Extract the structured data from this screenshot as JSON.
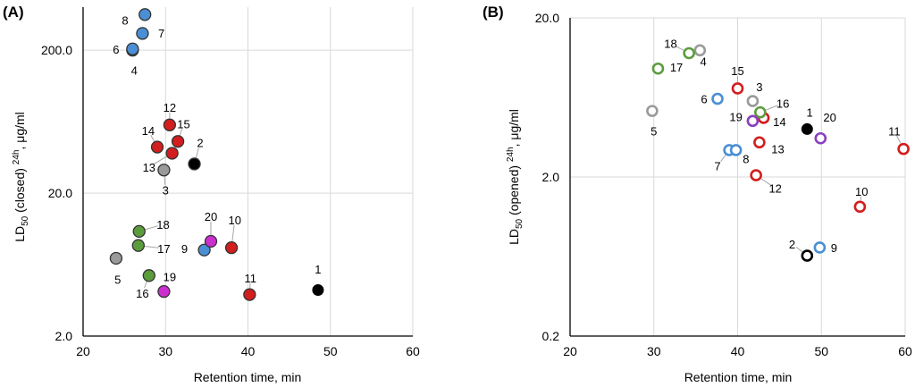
{
  "chart_data": [
    {
      "type": "scatter",
      "panel_label": "(A)",
      "xlabel": "Retention time, min",
      "ylabel_parts": [
        "LD",
        "50",
        " (closed) ",
        "24h",
        ", μg/ml"
      ],
      "xlim": [
        20,
        60
      ],
      "xticks": [
        "20",
        "30",
        "40",
        "50",
        "60"
      ],
      "yscale": "log",
      "ylim": [
        2,
        400
      ],
      "yticks": [
        {
          "v": 2,
          "label": "2.0"
        },
        {
          "v": 20,
          "label": "20.0"
        },
        {
          "v": 200,
          "label": "200.0"
        }
      ],
      "colors": {
        "blue": "#4a8fd4",
        "red": "#d21e1e",
        "green": "#5b9c3c",
        "gray": "#9a9a9a",
        "magenta": "#cc2ed0",
        "black": "#000000"
      },
      "points": [
        {
          "id": "1",
          "x": 48.5,
          "y": 4.2,
          "color": "black",
          "lx": 48.5,
          "ly": 5.9,
          "leader": false
        },
        {
          "id": "2",
          "x": 33.5,
          "y": 32.0,
          "color": "black",
          "lx": 34.2,
          "ly": 45.0,
          "leader": true
        },
        {
          "id": "3",
          "x": 29.8,
          "y": 29.0,
          "color": "gray",
          "lx": 30.0,
          "ly": 21.0,
          "leader": true
        },
        {
          "id": "4",
          "x": 26.0,
          "y": 200.0,
          "color": "blue",
          "lx": 26.2,
          "ly": 145.0,
          "leader": false
        },
        {
          "id": "5",
          "x": 24.0,
          "y": 7.0,
          "color": "gray",
          "lx": 24.2,
          "ly": 5.0,
          "leader": false
        },
        {
          "id": "6",
          "x": 26.0,
          "y": 204.0,
          "color": "blue",
          "lx": 24.0,
          "ly": 204.0,
          "leader": false
        },
        {
          "id": "7",
          "x": 27.2,
          "y": 262.0,
          "color": "blue",
          "lx": 29.5,
          "ly": 264.0,
          "leader": false
        },
        {
          "id": "8",
          "x": 27.5,
          "y": 355.0,
          "color": "blue",
          "lx": 25.1,
          "ly": 325.0,
          "leader": false
        },
        {
          "id": "9",
          "x": 34.7,
          "y": 8.0,
          "color": "blue",
          "lx": 32.3,
          "ly": 8.2,
          "leader": false
        },
        {
          "id": "10",
          "x": 38.0,
          "y": 8.3,
          "color": "red",
          "lx": 38.4,
          "ly": 13.0,
          "leader": true
        },
        {
          "id": "11",
          "x": 40.2,
          "y": 3.9,
          "color": "red",
          "lx": 40.3,
          "ly": 5.1,
          "leader": true
        },
        {
          "id": "12",
          "x": 30.5,
          "y": 60.0,
          "color": "red",
          "lx": 30.5,
          "ly": 80.0,
          "leader": true
        },
        {
          "id": "13",
          "x": 30.8,
          "y": 38.0,
          "color": "red",
          "lx": 28.0,
          "ly": 30.5,
          "leader": true
        },
        {
          "id": "14",
          "x": 29.0,
          "y": 42.0,
          "color": "red",
          "lx": 27.9,
          "ly": 55.0,
          "leader": true
        },
        {
          "id": "15",
          "x": 31.5,
          "y": 46.0,
          "color": "red",
          "lx": 32.2,
          "ly": 61.0,
          "leader": true
        },
        {
          "id": "16",
          "x": 28.0,
          "y": 5.3,
          "color": "green",
          "lx": 27.2,
          "ly": 4.0,
          "leader": true
        },
        {
          "id": "17",
          "x": 26.7,
          "y": 8.6,
          "color": "green",
          "lx": 29.8,
          "ly": 8.2,
          "leader": true
        },
        {
          "id": "18",
          "x": 26.8,
          "y": 10.8,
          "color": "green",
          "lx": 29.7,
          "ly": 12.1,
          "leader": true
        },
        {
          "id": "19",
          "x": 29.8,
          "y": 4.1,
          "color": "magenta",
          "lx": 30.5,
          "ly": 5.2,
          "leader": false
        },
        {
          "id": "20",
          "x": 35.5,
          "y": 9.2,
          "color": "magenta",
          "lx": 35.5,
          "ly": 13.8,
          "leader": true
        }
      ]
    },
    {
      "type": "scatter",
      "panel_label": "(B)",
      "xlabel": "Retention time, min",
      "ylabel_parts": [
        "LD",
        "50",
        " (opened) ",
        "24h",
        ", μg/ml"
      ],
      "xlim": [
        20,
        60
      ],
      "xticks": [
        "20",
        "30",
        "40",
        "50",
        "60"
      ],
      "yscale": "log",
      "ylim": [
        0.2,
        20
      ],
      "yticks": [
        {
          "v": 0.2,
          "label": "0.2"
        },
        {
          "v": 2,
          "label": "2.0"
        },
        {
          "v": 20,
          "label": "20.0"
        }
      ],
      "colors": {
        "blue": "#4a8fd4",
        "red": "#d21e1e",
        "green": "#5b9c3c",
        "gray": "#9a9a9a",
        "magenta": "#8a3fbf",
        "black": "#000000"
      },
      "points": [
        {
          "id": "1",
          "x": 48.3,
          "y": 4.0,
          "color": "black",
          "lx": 48.6,
          "ly": 5.1,
          "leader": false
        },
        {
          "id": "2",
          "x": 48.3,
          "y": 0.64,
          "color": "black",
          "lx": 46.5,
          "ly": 0.76,
          "leader": true
        },
        {
          "id": "3",
          "x": 41.8,
          "y": 6.0,
          "color": "gray",
          "lx": 42.6,
          "ly": 7.4,
          "leader": false
        },
        {
          "id": "4",
          "x": 35.5,
          "y": 12.5,
          "color": "gray",
          "lx": 35.9,
          "ly": 10.7,
          "leader": false
        },
        {
          "id": "5",
          "x": 29.8,
          "y": 5.2,
          "color": "gray",
          "lx": 30.0,
          "ly": 3.9,
          "leader": false
        },
        {
          "id": "6",
          "x": 37.6,
          "y": 6.2,
          "color": "blue",
          "lx": 36.0,
          "ly": 6.2,
          "leader": false
        },
        {
          "id": "7",
          "x": 39.0,
          "y": 2.95,
          "color": "blue",
          "lx": 37.6,
          "ly": 2.35,
          "leader": true
        },
        {
          "id": "8",
          "x": 39.8,
          "y": 2.95,
          "color": "blue",
          "lx": 41.0,
          "ly": 2.6,
          "leader": false
        },
        {
          "id": "9",
          "x": 49.8,
          "y": 0.72,
          "color": "blue",
          "lx": 51.5,
          "ly": 0.72,
          "leader": false
        },
        {
          "id": "10",
          "x": 54.6,
          "y": 1.3,
          "color": "red",
          "lx": 54.8,
          "ly": 1.63,
          "leader": true
        },
        {
          "id": "11",
          "x": 59.8,
          "y": 3.0,
          "color": "red",
          "lx": 58.7,
          "ly": 3.9,
          "leader": true
        },
        {
          "id": "12",
          "x": 42.2,
          "y": 2.05,
          "color": "red",
          "lx": 44.5,
          "ly": 1.7,
          "leader": true
        },
        {
          "id": "13",
          "x": 42.6,
          "y": 3.3,
          "color": "red",
          "lx": 44.8,
          "ly": 3.0,
          "leader": false
        },
        {
          "id": "14",
          "x": 43.1,
          "y": 4.7,
          "color": "red",
          "lx": 45.0,
          "ly": 4.45,
          "leader": false
        },
        {
          "id": "15",
          "x": 40.0,
          "y": 7.2,
          "color": "red",
          "lx": 40.0,
          "ly": 9.3,
          "leader": true
        },
        {
          "id": "16",
          "x": 42.7,
          "y": 5.1,
          "color": "green",
          "lx": 45.4,
          "ly": 5.8,
          "leader": true
        },
        {
          "id": "17",
          "x": 30.5,
          "y": 9.6,
          "color": "green",
          "lx": 32.7,
          "ly": 9.8,
          "leader": false
        },
        {
          "id": "18",
          "x": 34.2,
          "y": 12.0,
          "color": "green",
          "lx": 32.0,
          "ly": 13.8,
          "leader": true
        },
        {
          "id": "19",
          "x": 41.8,
          "y": 4.5,
          "color": "magenta",
          "lx": 39.8,
          "ly": 4.8,
          "leader": false
        },
        {
          "id": "20",
          "x": 49.9,
          "y": 3.5,
          "color": "magenta",
          "lx": 51.0,
          "ly": 4.75,
          "leader": false
        }
      ]
    }
  ]
}
